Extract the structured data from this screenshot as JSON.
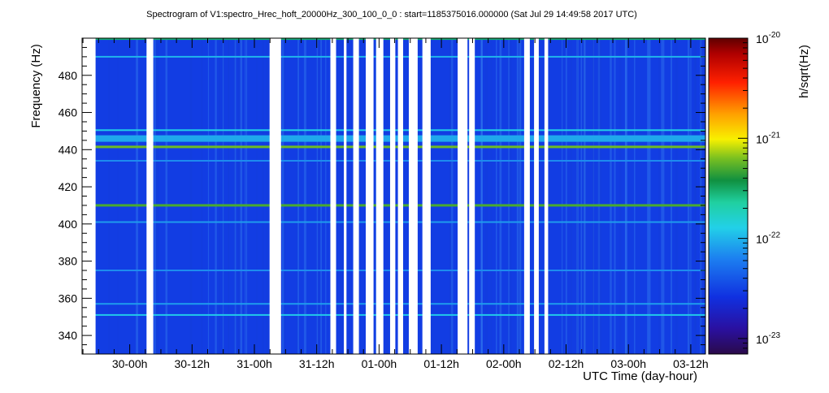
{
  "chart_data": {
    "type": "heatmap",
    "title": "Spectrogram of V1:spectro_Hrec_hoft_20000Hz_300_100_0_0 : start=1185375016.000000 (Sat Jul 29 14:49:58 2017 UTC)",
    "xlabel": "UTC Time (day-hour)",
    "ylabel": "Frequency (Hz)",
    "zlabel": "h/sqrt(Hz)",
    "x_tick_labels": [
      "30-00h",
      "30-12h",
      "31-00h",
      "31-12h",
      "01-00h",
      "01-12h",
      "02-00h",
      "02-12h",
      "03-00h",
      "03-12h"
    ],
    "x_tick_hours": [
      9.17,
      21.17,
      33.17,
      45.17,
      57.17,
      69.17,
      81.17,
      93.17,
      105.17,
      117.17
    ],
    "xlim_hours": [
      0,
      120
    ],
    "ylim": [
      330,
      500
    ],
    "y_ticks": [
      340,
      360,
      380,
      400,
      420,
      440,
      460,
      480
    ],
    "z_scale": "log",
    "zlim": [
      7e-24,
      1e-20
    ],
    "z_ticks": [
      {
        "mant": "10",
        "exp": "-20",
        "value": 1e-20
      },
      {
        "mant": "10",
        "exp": "-21",
        "value": 1e-21
      },
      {
        "mant": "10",
        "exp": "-22",
        "value": 1e-22
      },
      {
        "mant": "10",
        "exp": "-23",
        "value": 1e-23
      }
    ],
    "background_level": 3e-23,
    "lines": [
      {
        "freq": 499.5,
        "level": 3e-22,
        "width": 2
      },
      {
        "freq": 490.0,
        "level": 1e-22,
        "width": 2
      },
      {
        "freq": 450.5,
        "level": 1.3e-22,
        "width": 2
      },
      {
        "freq": 446.0,
        "level": 9e-23,
        "width": 8
      },
      {
        "freq": 441.5,
        "level": 6e-22,
        "width": 3
      },
      {
        "freq": 434.0,
        "level": 7e-23,
        "width": 2
      },
      {
        "freq": 410.0,
        "level": 5e-22,
        "width": 3
      },
      {
        "freq": 401.0,
        "level": 8e-23,
        "width": 2
      },
      {
        "freq": 375.0,
        "level": 7e-23,
        "width": 2
      },
      {
        "freq": 357.0,
        "level": 8e-23,
        "width": 2
      },
      {
        "freq": 351.0,
        "level": 1.2e-22,
        "width": 2
      }
    ],
    "gaps_hours": [
      [
        0.0,
        2.6
      ],
      [
        12.4,
        13.7
      ],
      [
        36.1,
        38.3
      ],
      [
        47.8,
        48.9
      ],
      [
        50.4,
        50.9
      ],
      [
        52.2,
        53.3
      ],
      [
        54.6,
        56.1
      ],
      [
        56.6,
        58.0
      ],
      [
        59.3,
        60.3
      ],
      [
        60.8,
        61.8
      ],
      [
        62.9,
        64.6
      ],
      [
        65.5,
        67.1
      ],
      [
        72.3,
        74.2
      ],
      [
        74.5,
        75.6
      ],
      [
        85.1,
        86.2
      ],
      [
        87.0,
        87.9
      ],
      [
        89.0,
        89.7
      ]
    ]
  }
}
